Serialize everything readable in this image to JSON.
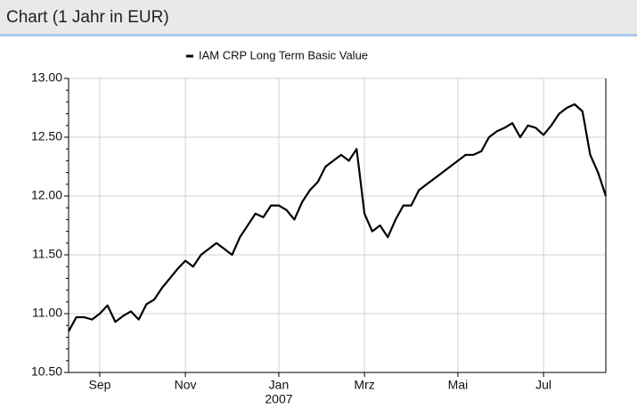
{
  "chart_data": {
    "type": "line",
    "title": "Chart (1 Jahr in EUR)",
    "annotation": "2007",
    "categories": [
      null,
      null,
      null,
      null,
      "Sep",
      null,
      null,
      null,
      null,
      null,
      null,
      null,
      null,
      null,
      null,
      "Nov",
      null,
      null,
      null,
      null,
      null,
      null,
      null,
      null,
      null,
      null,
      null,
      "Jan",
      null,
      null,
      null,
      null,
      null,
      null,
      null,
      null,
      null,
      null,
      "Mrz",
      null,
      null,
      null,
      null,
      null,
      null,
      null,
      null,
      null,
      null,
      null,
      "Mai",
      null,
      null,
      null,
      null,
      null,
      null,
      null,
      null,
      null,
      null,
      "Jul",
      null,
      null,
      null,
      null,
      null,
      null,
      null,
      null
    ],
    "series": [
      {
        "name": "IAM CRP Long Term Basic Value",
        "color": "#000000",
        "values": [
          10.85,
          10.97,
          10.97,
          10.95,
          11.0,
          11.07,
          10.93,
          10.98,
          11.02,
          10.95,
          11.08,
          11.12,
          11.22,
          11.3,
          11.38,
          11.45,
          11.4,
          11.5,
          11.55,
          11.6,
          11.55,
          11.5,
          11.65,
          11.75,
          11.85,
          11.82,
          11.92,
          11.92,
          11.88,
          11.8,
          11.95,
          12.05,
          12.12,
          12.25,
          12.3,
          12.35,
          12.3,
          12.4,
          11.85,
          11.7,
          11.75,
          11.65,
          11.8,
          11.92,
          11.92,
          12.05,
          12.1,
          12.15,
          12.2,
          12.25,
          12.3,
          12.35,
          12.35,
          12.38,
          12.5,
          12.55,
          12.58,
          12.62,
          12.5,
          12.6,
          12.58,
          12.52,
          12.6,
          12.7,
          12.75,
          12.78,
          12.72,
          12.35,
          12.2,
          12.0
        ]
      }
    ],
    "ylim": [
      10.5,
      13.0
    ],
    "yticks": [
      {
        "value": 10.5,
        "label": "10.50"
      },
      {
        "value": 11.0,
        "label": "11.00"
      },
      {
        "value": 11.5,
        "label": "11.50"
      },
      {
        "value": 12.0,
        "label": "12.00"
      },
      {
        "value": 12.5,
        "label": "12.50"
      },
      {
        "value": 13.0,
        "label": "13.00"
      }
    ],
    "grid": true,
    "legend": "top"
  }
}
